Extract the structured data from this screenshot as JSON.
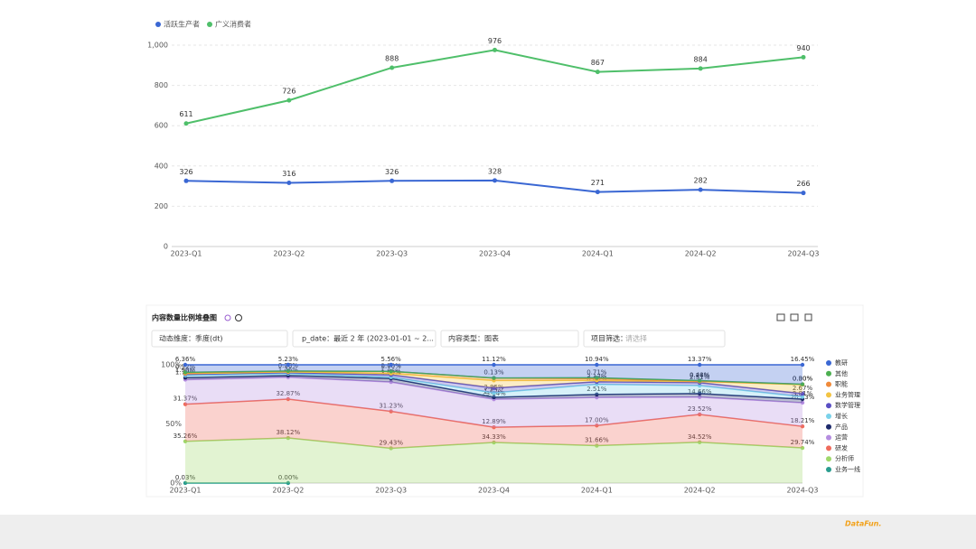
{
  "chart_data": [
    {
      "type": "line",
      "categories": [
        "2023-Q1",
        "2023-Q2",
        "2023-Q3",
        "2023-Q4",
        "2024-Q1",
        "2024-Q2",
        "2024-Q3"
      ],
      "series": [
        {
          "name": "活跃生产者",
          "color": "#3a67d3",
          "values": [
            326,
            316,
            326,
            328,
            271,
            282,
            266
          ]
        },
        {
          "name": "广义消费者",
          "color": "#4fbf6a",
          "values": [
            611,
            726,
            888,
            976,
            867,
            884,
            940
          ]
        }
      ],
      "ylim": [
        0,
        1000
      ],
      "yticks": [
        0,
        200,
        400,
        600,
        800,
        {
          "value": 1000,
          "label": "1,000"
        }
      ],
      "grid": true,
      "legend": "top-left"
    },
    {
      "type": "area",
      "stacked": true,
      "title": "内容数量比例堆叠图",
      "categories": [
        "2023-Q1",
        "2023-Q2",
        "2023-Q3",
        "2023-Q4",
        "2024-Q1",
        "2024-Q2",
        "2024-Q3"
      ],
      "series": [
        {
          "name": "业务一线",
          "color": "#2a9d8f",
          "values": [
            0.03,
            0.0,
            null,
            null,
            null,
            null,
            null
          ],
          "value_labels": [
            "0.03%",
            "0.00%",
            null,
            null,
            null,
            null,
            null
          ]
        },
        {
          "name": "分析师",
          "color": "#9fd86a",
          "values": [
            35.26,
            38.12,
            29.43,
            34.33,
            31.66,
            34.52,
            29.74
          ],
          "value_labels": [
            "35.26%",
            "38.12%",
            "29.43%",
            "34.33%",
            "31.66%",
            "34.52%",
            "29.74%"
          ]
        },
        {
          "name": "研发",
          "color": "#ef6b5c",
          "values": [
            31.37,
            32.87,
            31.23,
            12.89,
            17.0,
            23.52,
            18.21
          ],
          "value_labels": [
            "31.37%",
            "32.87%",
            "31.23%",
            "12.89%",
            "17.00%",
            "23.52%",
            "18.21%"
          ]
        },
        {
          "name": "运营",
          "color": "#b58de0",
          "values": [
            20.76,
            18.49,
            24.76,
            23.64,
            23.76,
            14.66,
            20.03
          ],
          "value_labels": [
            null,
            null,
            null,
            "23.64%",
            null,
            "14.66%",
            "20.03%"
          ]
        },
        {
          "name": "产品",
          "color": "#1d2a6b",
          "values": [
            1.7,
            1.46,
            3.06,
            1.67,
            2.51,
            3.0,
            3.01
          ],
          "value_labels": [
            "1.70%",
            "1.46%",
            "3.06%",
            "1.67%",
            "2.51%",
            null,
            "3.01%"
          ]
        },
        {
          "name": "增长",
          "color": "#7ad2ea",
          "values": [
            1.9,
            1.65,
            1.06,
            3.85,
            8.6,
            6.7,
            2.0
          ],
          "value_labels": [
            "1.90%",
            null,
            "1.06%",
            "3.85%",
            "8.60%",
            null,
            null
          ]
        },
        {
          "name": "数学管理",
          "color": "#5a4fc4",
          "values": [
            1.0,
            0.8,
            2.0,
            4.0,
            2.12,
            2.51,
            2.67
          ],
          "value_labels": [
            null,
            null,
            null,
            null,
            "2.12%",
            "2.51%",
            "2.67%"
          ]
        },
        {
          "name": "业务管理",
          "color": "#f3c443",
          "values": [
            0.5,
            0.6,
            1.2,
            6.37,
            1.2,
            1.0,
            7.59
          ],
          "value_labels": [
            null,
            null,
            null,
            null,
            null,
            null,
            null
          ]
        },
        {
          "name": "职能",
          "color": "#f08a3a",
          "values": [
            0.6,
            0.5,
            1.7,
            2.0,
            1.5,
            0.24,
            0.3
          ],
          "value_labels": [
            null,
            null,
            "1.70%",
            null,
            null,
            "0.24%",
            "0.30%"
          ]
        },
        {
          "name": "其他",
          "color": "#4caf50",
          "values": [
            0.52,
            0.28,
            0.0,
            0.13,
            0.71,
            0.48,
            0.0
          ],
          "value_labels": [
            "0.52%",
            "0.28%",
            "0.00%",
            "0.13%",
            "0.71%",
            "0.48%",
            "0.00%"
          ]
        },
        {
          "name": "教研",
          "color": "#3a67d3",
          "values": [
            6.36,
            5.23,
            5.56,
            11.12,
            10.94,
            13.37,
            16.45
          ],
          "value_labels": [
            "6.36%",
            "5.23%",
            "5.56%",
            "11.12%",
            "10.94%",
            "13.37%",
            "16.45%"
          ]
        }
      ],
      "ylim": [
        0,
        100
      ],
      "yticks": [
        {
          "value": 0,
          "label": "0%"
        },
        {
          "value": 50,
          "label": "50%"
        },
        {
          "value": 100,
          "label": "100%"
        }
      ],
      "grid": false,
      "legend": "right"
    }
  ],
  "filters": [
    "动态维度：季度(dt)",
    "p_date：最近 2 年 (2023-01-01 ~ 2...",
    "内容类型：图表",
    "项目筛选："
  ],
  "filter_placeholder": "请选择",
  "logo": "DataFun."
}
